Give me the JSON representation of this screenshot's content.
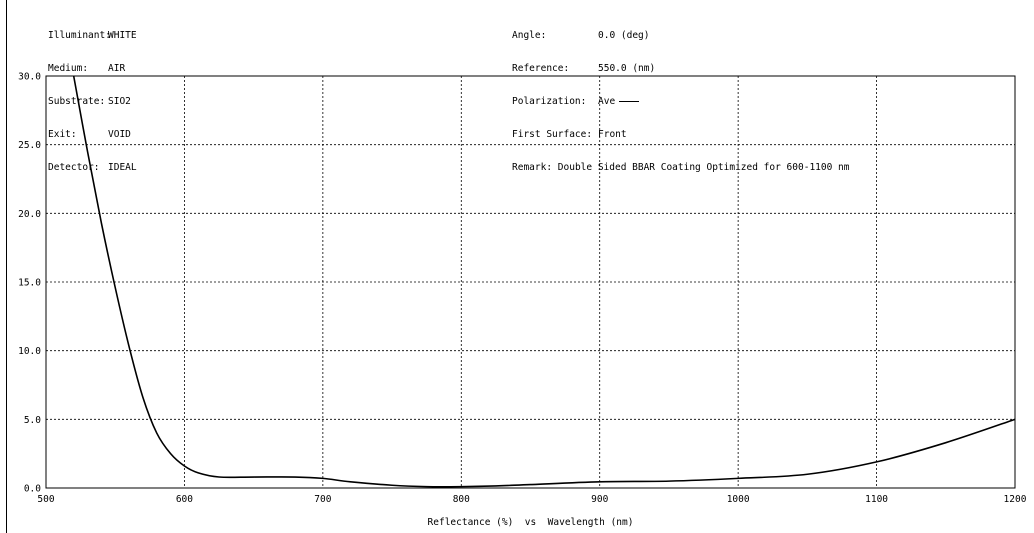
{
  "header": {
    "left": [
      {
        "label": "Illuminant:",
        "value": "WHITE"
      },
      {
        "label": "Medium:",
        "value": "AIR"
      },
      {
        "label": "Substrate:",
        "value": "SIO2"
      },
      {
        "label": "Exit:",
        "value": "VOID"
      },
      {
        "label": "Detector:",
        "value": "IDEAL"
      }
    ],
    "right": [
      {
        "label": "Angle:",
        "value": "0.0 (deg)"
      },
      {
        "label": "Reference:",
        "value": "550.0 (nm)"
      },
      {
        "label": "Polarization:",
        "value": "Ave"
      },
      {
        "label": "First Surface:",
        "value": "Front"
      },
      {
        "label": "Remark:",
        "value": "Double Sided BBAR Coating Optimized for 600-1100 nm"
      }
    ]
  },
  "chart_data": {
    "type": "line",
    "title": "",
    "xlabel": "Reflectance (%)  vs  Wavelength (nm)",
    "ylabel": "",
    "xlim": [
      500,
      1200
    ],
    "ylim": [
      0,
      30
    ],
    "xticks": [
      "500",
      "600",
      "700",
      "800",
      "900",
      "1000",
      "1100",
      "1200"
    ],
    "yticks": [
      "0.0",
      "5.0",
      "10.0",
      "15.0",
      "20.0",
      "25.0",
      "30.0"
    ],
    "grid": true,
    "legend": "Polarization: Ave",
    "series": [
      {
        "name": "Ave",
        "color": "#000000",
        "x": [
          520,
          530,
          540,
          550,
          560,
          570,
          580,
          590,
          600,
          610,
          625,
          650,
          680,
          700,
          720,
          750,
          775,
          800,
          825,
          850,
          900,
          950,
          1000,
          1050,
          1100,
          1150,
          1200
        ],
        "y": [
          30.0,
          24.5,
          19.3,
          14.6,
          10.3,
          6.6,
          4.0,
          2.5,
          1.6,
          1.1,
          0.8,
          0.8,
          0.8,
          0.7,
          0.45,
          0.2,
          0.1,
          0.1,
          0.15,
          0.25,
          0.45,
          0.5,
          0.7,
          1.0,
          1.9,
          3.3,
          5.0
        ]
      }
    ]
  }
}
